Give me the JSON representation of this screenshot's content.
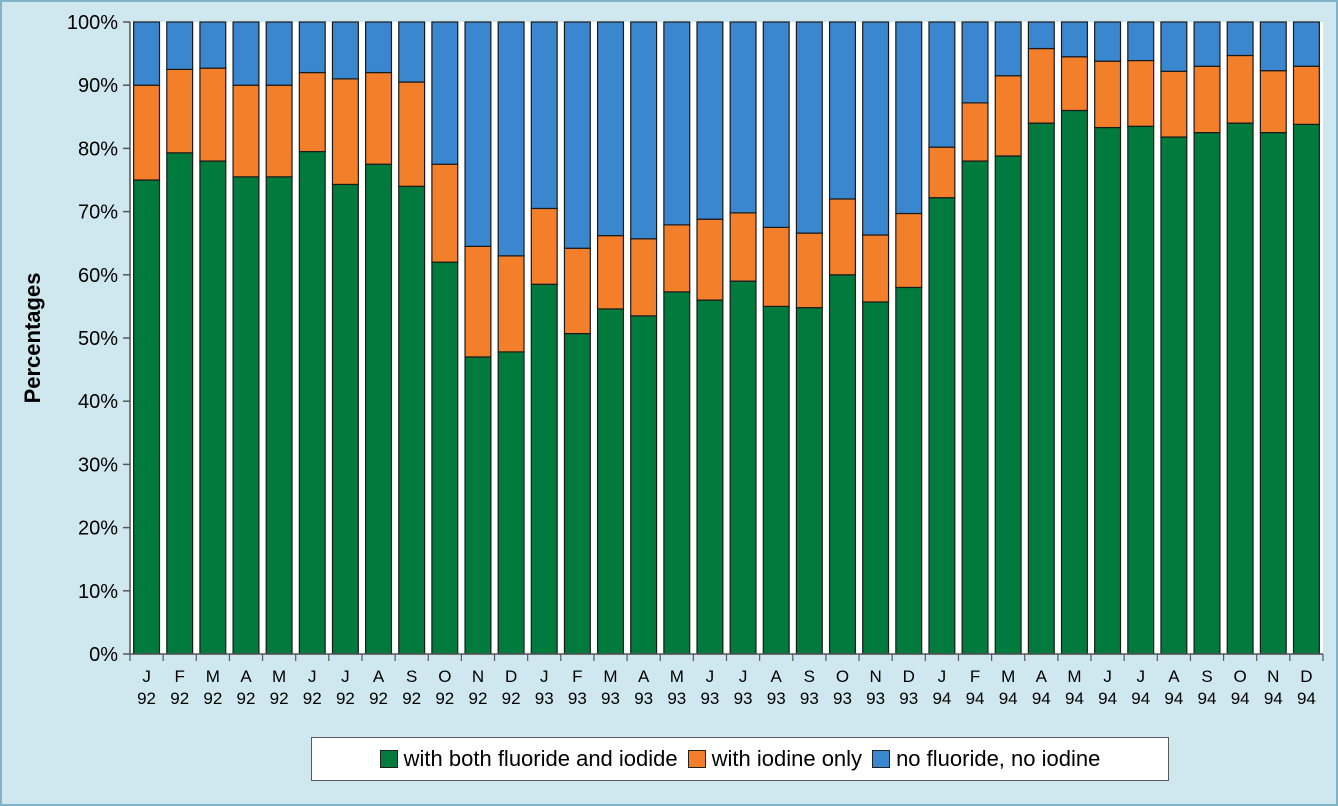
{
  "chart_data": {
    "type": "bar",
    "stacked": true,
    "ylabel": "Percentages",
    "xlabel": "",
    "ylim": [
      0,
      100
    ],
    "y_ticks": [
      "0%",
      "10%",
      "20%",
      "30%",
      "40%",
      "50%",
      "60%",
      "70%",
      "80%",
      "90%",
      "100%"
    ],
    "categories": [
      [
        "J",
        "92"
      ],
      [
        "F",
        "92"
      ],
      [
        "M",
        "92"
      ],
      [
        "A",
        "92"
      ],
      [
        "M",
        "92"
      ],
      [
        "J",
        "92"
      ],
      [
        "J",
        "92"
      ],
      [
        "A",
        "92"
      ],
      [
        "S",
        "92"
      ],
      [
        "O",
        "92"
      ],
      [
        "N",
        "92"
      ],
      [
        "D",
        "92"
      ],
      [
        "J",
        "93"
      ],
      [
        "F",
        "93"
      ],
      [
        "M",
        "93"
      ],
      [
        "A",
        "93"
      ],
      [
        "M",
        "93"
      ],
      [
        "J",
        "93"
      ],
      [
        "J",
        "93"
      ],
      [
        "A",
        "93"
      ],
      [
        "S",
        "93"
      ],
      [
        "O",
        "93"
      ],
      [
        "N",
        "93"
      ],
      [
        "D",
        "93"
      ],
      [
        "J",
        "94"
      ],
      [
        "F",
        "94"
      ],
      [
        "M",
        "94"
      ],
      [
        "A",
        "94"
      ],
      [
        "M",
        "94"
      ],
      [
        "J",
        "94"
      ],
      [
        "J",
        "94"
      ],
      [
        "A",
        "94"
      ],
      [
        "S",
        "94"
      ],
      [
        "O",
        "94"
      ],
      [
        "N",
        "94"
      ],
      [
        "D",
        "94"
      ]
    ],
    "series": [
      {
        "name": "with both fluoride and iodide",
        "color": "#007a3d",
        "values": [
          75,
          79.3,
          78,
          75.5,
          75.5,
          79.5,
          74.3,
          77.5,
          74,
          62,
          47,
          47.8,
          58.5,
          50.7,
          54.6,
          53.5,
          57.3,
          56,
          59,
          55,
          54.8,
          60,
          55.7,
          58,
          72.2,
          78,
          78.8,
          84,
          86,
          83.3,
          83.5,
          81.8,
          82.5,
          84,
          82.5,
          83.8
        ]
      },
      {
        "name": "with iodine only",
        "color": "#f47f2a",
        "values": [
          15,
          13.2,
          14.7,
          14.5,
          14.5,
          12.5,
          16.7,
          14.5,
          16.5,
          15.5,
          17.5,
          15.2,
          12,
          13.5,
          11.6,
          12.2,
          10.6,
          12.8,
          10.8,
          12.5,
          11.8,
          12,
          10.6,
          11.7,
          8,
          9.2,
          12.7,
          11.8,
          8.5,
          10.5,
          10.4,
          10.4,
          10.5,
          10.7,
          9.8,
          9.2
        ]
      },
      {
        "name": "no fluoride, no iodine",
        "color": "#3a87d0",
        "values": [
          10,
          7.5,
          7.3,
          10,
          10,
          8,
          9,
          8,
          9.5,
          22.5,
          35.5,
          37,
          29.5,
          35.8,
          33.8,
          34.3,
          32.1,
          31.2,
          30.2,
          32.5,
          33.4,
          28,
          33.7,
          30.3,
          19.8,
          12.8,
          8.5,
          4.2,
          5.5,
          6.2,
          6.1,
          7.8,
          7,
          5.3,
          7.7,
          7
        ]
      }
    ],
    "legend_position": "bottom",
    "grid": false
  }
}
